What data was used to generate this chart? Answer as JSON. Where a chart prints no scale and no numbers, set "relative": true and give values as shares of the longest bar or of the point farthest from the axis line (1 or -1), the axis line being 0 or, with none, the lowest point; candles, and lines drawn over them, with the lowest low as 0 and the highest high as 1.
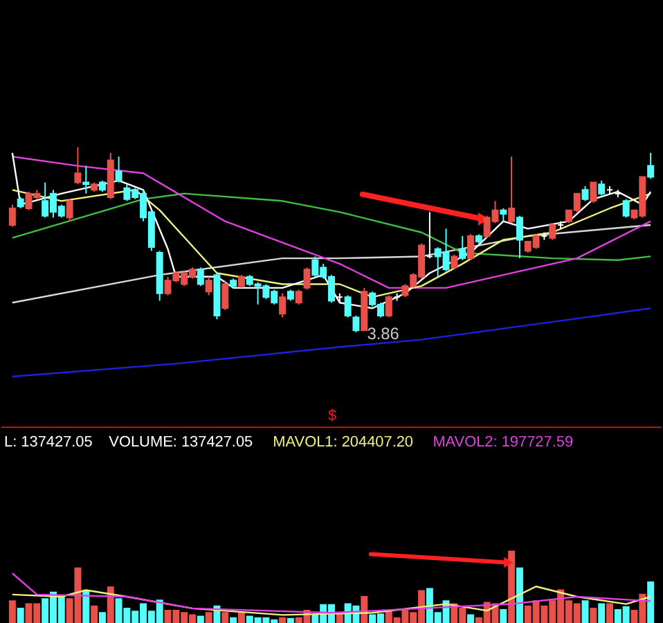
{
  "chart_data": [
    {
      "type": "candlestick",
      "relative": true,
      "categories": [
        null,
        null,
        null,
        null,
        null,
        null,
        null,
        null,
        null,
        null,
        null,
        null,
        null,
        null,
        null,
        null,
        null,
        null,
        null,
        null,
        null,
        null,
        null,
        null,
        null,
        null,
        null,
        null,
        null,
        null,
        null,
        null,
        null,
        null,
        null,
        null,
        null,
        null,
        null,
        null,
        null,
        null,
        null,
        null,
        null,
        null,
        null,
        null,
        null,
        null,
        null,
        null,
        null,
        null,
        null,
        null,
        null,
        null,
        null,
        null,
        null,
        null,
        null,
        null,
        null,
        null,
        null,
        null,
        null,
        null,
        null,
        null,
        null,
        null,
        null,
        null,
        null,
        null,
        null
      ],
      "ohlc": [
        [
          0.58,
          0.69,
          0.57,
          0.67
        ],
        [
          0.72,
          0.73,
          0.67,
          0.68
        ],
        [
          0.67,
          0.76,
          0.66,
          0.75
        ],
        [
          0.73,
          0.77,
          0.72,
          0.75
        ],
        [
          0.71,
          0.81,
          0.62,
          0.63
        ],
        [
          0.75,
          0.77,
          0.62,
          0.65
        ],
        [
          0.68,
          0.69,
          0.62,
          0.63
        ],
        [
          0.62,
          0.72,
          0.6,
          0.71
        ],
        [
          0.81,
          1.0,
          0.8,
          0.86
        ],
        [
          0.81,
          0.9,
          0.75,
          0.8
        ],
        [
          0.77,
          0.81,
          0.76,
          0.8
        ],
        [
          0.81,
          0.82,
          0.76,
          0.77
        ],
        [
          0.73,
          0.97,
          0.72,
          0.93
        ],
        [
          0.87,
          0.95,
          0.81,
          0.82
        ],
        [
          0.78,
          0.8,
          0.71,
          0.72
        ],
        [
          0.77,
          0.78,
          0.72,
          0.73
        ],
        [
          0.75,
          0.77,
          0.6,
          0.62
        ],
        [
          0.65,
          0.66,
          0.44,
          0.46
        ],
        [
          0.43,
          0.44,
          0.17,
          0.21
        ],
        [
          0.21,
          0.3,
          0.2,
          0.28
        ],
        [
          0.28,
          0.33,
          0.27,
          0.32
        ],
        [
          0.26,
          0.33,
          0.25,
          0.32
        ],
        [
          0.3,
          0.35,
          0.29,
          0.34
        ],
        [
          0.34,
          0.35,
          0.25,
          0.26
        ],
        [
          0.22,
          0.3,
          0.2,
          0.28
        ],
        [
          0.31,
          0.32,
          0.07,
          0.09
        ],
        [
          0.13,
          0.28,
          0.12,
          0.26
        ],
        [
          0.28,
          0.29,
          0.24,
          0.25
        ],
        [
          0.25,
          0.31,
          0.24,
          0.3
        ],
        [
          0.3,
          0.31,
          0.25,
          0.26
        ],
        [
          0.26,
          0.27,
          0.15,
          0.25
        ],
        [
          0.25,
          0.26,
          0.18,
          0.19
        ],
        [
          0.22,
          0.23,
          0.15,
          0.16
        ],
        [
          0.1,
          0.21,
          0.08,
          0.19
        ],
        [
          0.22,
          0.23,
          0.17,
          0.18
        ],
        [
          0.16,
          0.23,
          0.15,
          0.22
        ],
        [
          0.24,
          0.35,
          0.23,
          0.34
        ],
        [
          0.39,
          0.41,
          0.3,
          0.31
        ],
        [
          0.35,
          0.37,
          0.29,
          0.3
        ],
        [
          0.3,
          0.31,
          0.16,
          0.17
        ],
        [
          0.19,
          0.21,
          0.16,
          0.19
        ],
        [
          0.19,
          0.2,
          0.08,
          0.09
        ],
        [
          0.08,
          0.09,
          0.0,
          0.01
        ],
        [
          0.01,
          0.24,
          0.01,
          0.22
        ],
        [
          0.21,
          0.22,
          0.14,
          0.15
        ],
        [
          0.15,
          0.16,
          0.08,
          0.09
        ],
        [
          0.09,
          0.2,
          0.08,
          0.19
        ],
        [
          0.19,
          0.21,
          0.17,
          0.19
        ],
        [
          0.2,
          0.26,
          0.19,
          0.25
        ],
        [
          0.25,
          0.32,
          0.24,
          0.31
        ],
        [
          0.3,
          0.48,
          0.29,
          0.47
        ],
        [
          0.41,
          0.65,
          0.4,
          0.41
        ],
        [
          0.45,
          0.46,
          0.3,
          0.41
        ],
        [
          0.43,
          0.56,
          0.33,
          0.34
        ],
        [
          0.35,
          0.42,
          0.34,
          0.41
        ],
        [
          0.45,
          0.52,
          0.39,
          0.4
        ],
        [
          0.4,
          0.53,
          0.39,
          0.52
        ],
        [
          0.52,
          0.53,
          0.48,
          0.49
        ],
        [
          0.52,
          0.63,
          0.51,
          0.62
        ],
        [
          0.6,
          0.71,
          0.59,
          0.66
        ],
        [
          0.66,
          0.67,
          0.6,
          0.64
        ],
        [
          0.6,
          0.95,
          0.59,
          0.67
        ],
        [
          0.62,
          0.63,
          0.4,
          0.5
        ],
        [
          0.44,
          0.49,
          0.43,
          0.49
        ],
        [
          0.46,
          0.53,
          0.45,
          0.52
        ],
        [
          0.52,
          0.54,
          0.5,
          0.52
        ],
        [
          0.51,
          0.59,
          0.5,
          0.58
        ],
        [
          0.58,
          0.6,
          0.56,
          0.58
        ],
        [
          0.6,
          0.66,
          0.59,
          0.66
        ],
        [
          0.66,
          0.75,
          0.65,
          0.75
        ],
        [
          0.77,
          0.79,
          0.71,
          0.72
        ],
        [
          0.71,
          0.81,
          0.7,
          0.81
        ],
        [
          0.8,
          0.82,
          0.74,
          0.75
        ],
        [
          0.77,
          0.79,
          0.75,
          0.77
        ],
        [
          0.75,
          0.77,
          0.73,
          0.75
        ],
        [
          0.71,
          0.72,
          0.62,
          0.63
        ],
        [
          0.62,
          0.66,
          0.61,
          0.66
        ],
        [
          0.63,
          0.84,
          0.62,
          0.84
        ],
        [
          0.9,
          0.97,
          0.83,
          0.84
        ]
      ],
      "colors": [
        "#e8504a",
        "#54fcfc",
        "#e8504a",
        "#e8504a",
        "#54fcfc",
        "#54fcfc",
        "#54fcfc",
        "#e8504a",
        "#e8504a",
        "#54fcfc",
        "#e8504a",
        "#54fcfc",
        "#e8504a",
        "#54fcfc",
        "#54fcfc",
        "#54fcfc",
        "#54fcfc",
        "#54fcfc",
        "#54fcfc",
        "#e8504a",
        "#e8504a",
        "#e8504a",
        "#e8504a",
        "#54fcfc",
        "#e8504a",
        "#54fcfc",
        "#e8504a",
        "#54fcfc",
        "#e8504a",
        "#54fcfc",
        "#54fcfc",
        "#54fcfc",
        "#54fcfc",
        "#e8504a",
        "#54fcfc",
        "#e8504a",
        "#e8504a",
        "#54fcfc",
        "#54fcfc",
        "#54fcfc",
        "#ffffff",
        "#54fcfc",
        "#54fcfc",
        "#e8504a",
        "#54fcfc",
        "#54fcfc",
        "#e8504a",
        "#ffffff",
        "#e8504a",
        "#e8504a",
        "#e8504a",
        "#ffffff",
        "#54fcfc",
        "#54fcfc",
        "#e8504a",
        "#54fcfc",
        "#e8504a",
        "#54fcfc",
        "#e8504a",
        "#e8504a",
        "#54fcfc",
        "#e8504a",
        "#54fcfc",
        "#e8504a",
        "#e8504a",
        "#ffffff",
        "#e8504a",
        "#ffffff",
        "#e8504a",
        "#e8504a",
        "#54fcfc",
        "#e8504a",
        "#54fcfc",
        "#ffffff",
        "#ffffff",
        "#54fcfc",
        "#e8504a",
        "#e8504a",
        "#54fcfc"
      ],
      "series": [
        {
          "type": "line",
          "color": "#2020e0",
          "values": [
            -0.24,
            null,
            null,
            null,
            null,
            null,
            null,
            null,
            null,
            null,
            null,
            null,
            null,
            null,
            null,
            null,
            null,
            null,
            null,
            null,
            -0.17,
            null,
            null,
            null,
            null,
            null,
            null,
            null,
            null,
            null,
            null,
            null,
            null,
            null,
            null,
            null,
            null,
            null,
            null,
            null,
            -0.08,
            null,
            null,
            null,
            null,
            null,
            null,
            null,
            null,
            null,
            -0.04,
            null,
            null,
            null,
            null,
            null,
            null,
            null,
            null,
            null,
            0.02,
            null,
            null,
            null,
            null,
            null,
            null,
            null,
            null,
            null,
            0.08,
            null,
            null,
            null,
            null,
            null,
            null,
            null,
            0.13
          ]
        },
        {
          "type": "line",
          "color": "#d8d8d8",
          "values": [
            0.16,
            null,
            null,
            null,
            null,
            null,
            null,
            null,
            null,
            null,
            null,
            null,
            null,
            null,
            null,
            null,
            null,
            null,
            0.31,
            null,
            null,
            null,
            null,
            null,
            null,
            null,
            null,
            null,
            null,
            null,
            null,
            null,
            null,
            0.4,
            null,
            null,
            null,
            null,
            null,
            null,
            0.4,
            null,
            null,
            null,
            null,
            null,
            null,
            null,
            null,
            null,
            0.41,
            null,
            null,
            null,
            null,
            null,
            null,
            null,
            null,
            null,
            null,
            null,
            null,
            0.52,
            null,
            null,
            null,
            null,
            null,
            null,
            null,
            null,
            null,
            null,
            null,
            null,
            null,
            null,
            0.58
          ]
        },
        {
          "type": "line",
          "color": "#40c040",
          "values": [
            0.51,
            null,
            null,
            null,
            null,
            null,
            null,
            null,
            null,
            null,
            null,
            null,
            null,
            null,
            null,
            null,
            0.72,
            null,
            null,
            null,
            null,
            0.75,
            null,
            null,
            null,
            null,
            null,
            null,
            null,
            null,
            null,
            null,
            null,
            0.71,
            null,
            null,
            null,
            null,
            null,
            null,
            0.65,
            null,
            null,
            null,
            null,
            null,
            null,
            null,
            null,
            null,
            0.54,
            null,
            null,
            null,
            null,
            0.43,
            null,
            null,
            null,
            null,
            null,
            null,
            null,
            null,
            null,
            null,
            0.4,
            null,
            null,
            null,
            null,
            null,
            null,
            null,
            0.39,
            null,
            null,
            null,
            0.41
          ]
        },
        {
          "type": "line",
          "color": "#e040e0",
          "values": [
            0.95,
            null,
            null,
            null,
            null,
            null,
            null,
            null,
            0.9,
            null,
            null,
            null,
            null,
            null,
            null,
            null,
            0.86,
            null,
            null,
            null,
            null,
            null,
            null,
            null,
            null,
            null,
            0.6,
            null,
            null,
            null,
            null,
            null,
            null,
            null,
            null,
            null,
            null,
            null,
            null,
            null,
            0.37,
            null,
            null,
            null,
            null,
            null,
            0.24,
            null,
            null,
            null,
            null,
            null,
            null,
            0.24,
            null,
            null,
            null,
            null,
            null,
            null,
            null,
            null,
            null,
            0.34,
            null,
            null,
            null,
            null,
            null,
            0.4,
            null,
            null,
            null,
            null,
            null,
            null,
            null,
            null,
            0.6
          ]
        },
        {
          "type": "line",
          "color": "#f0f080",
          "values": [
            0.77,
            null,
            null,
            null,
            null,
            null,
            0.71,
            null,
            null,
            null,
            null,
            null,
            null,
            null,
            null,
            0.77,
            null,
            null,
            0.66,
            null,
            null,
            null,
            null,
            null,
            null,
            0.32,
            null,
            null,
            null,
            null,
            null,
            null,
            null,
            0.26,
            null,
            null,
            null,
            null,
            null,
            null,
            0.26,
            null,
            null,
            null,
            0.19,
            null,
            null,
            null,
            null,
            null,
            0.25,
            null,
            null,
            null,
            null,
            0.37,
            null,
            null,
            null,
            null,
            0.5,
            null,
            null,
            null,
            null,
            null,
            0.54,
            null,
            null,
            null,
            null,
            null,
            null,
            0.67,
            null,
            null,
            null,
            null,
            0.75
          ]
        },
        {
          "type": "line",
          "color": "#ffffff",
          "values": [
            0.97,
            0.69,
            null,
            null,
            null,
            null,
            0.75,
            null,
            null,
            null,
            null,
            null,
            null,
            0.82,
            null,
            null,
            0.77,
            null,
            null,
            0.45,
            0.3,
            null,
            null,
            null,
            null,
            0.3,
            null,
            0.24,
            null,
            null,
            null,
            null,
            null,
            0.24,
            null,
            null,
            null,
            null,
            0.31,
            null,
            0.16,
            null,
            null,
            null,
            0.13,
            null,
            null,
            null,
            0.21,
            null,
            null,
            0.32,
            null,
            null,
            null,
            null,
            0.43,
            null,
            null,
            null,
            0.6,
            null,
            null,
            0.56,
            null,
            null,
            null,
            null,
            0.6,
            null,
            null,
            0.72,
            null,
            null,
            0.76,
            null,
            null,
            0.69,
            0.76
          ]
        }
      ],
      "annotations": [
        "3.86"
      ]
    },
    {
      "type": "bar",
      "relative": true,
      "categories": [
        null,
        null,
        null,
        null,
        null,
        null,
        null,
        null,
        null,
        null,
        null,
        null,
        null,
        null,
        null,
        null,
        null,
        null,
        null,
        null,
        null,
        null,
        null,
        null,
        null,
        null,
        null,
        null,
        null,
        null,
        null,
        null,
        null,
        null,
        null,
        null,
        null,
        null,
        null,
        null,
        null,
        null,
        null,
        null,
        null,
        null,
        null,
        null,
        null,
        null,
        null,
        null,
        null,
        null,
        null,
        null,
        null,
        null,
        null,
        null,
        null,
        null,
        null,
        null,
        null,
        null,
        null,
        null,
        null,
        null,
        null,
        null,
        null,
        null,
        null,
        null,
        null,
        null,
        null
      ],
      "series": [
        {
          "type": "bar",
          "values": [
            0.32,
            0.22,
            0.28,
            0.28,
            0.35,
            0.44,
            0.39,
            0.35,
            0.77,
            0.46,
            0.25,
            0.16,
            0.51,
            0.35,
            0.22,
            0.18,
            0.28,
            0.18,
            0.33,
            0.19,
            0.19,
            0.16,
            0.13,
            0.11,
            0.16,
            0.25,
            0.16,
            0.09,
            0.16,
            0.11,
            0.09,
            0.09,
            0.06,
            0.09,
            0.08,
            0.09,
            0.19,
            0.13,
            0.27,
            0.27,
            0.16,
            0.28,
            0.25,
            0.38,
            0.13,
            0.14,
            0.19,
            0.09,
            0.2,
            0.16,
            0.46,
            0.49,
            0.16,
            0.32,
            0.28,
            0.22,
            0.13,
            0.09,
            0.3,
            0.28,
            0.2,
            1.0,
            0.77,
            0.25,
            0.32,
            0.25,
            0.32,
            0.47,
            0.32,
            0.28,
            0.32,
            0.22,
            0.28,
            0.28,
            0.2,
            0.24,
            0.19,
            0.41,
            0.58
          ],
          "colors": [
            "#e8504a",
            "#54fcfc",
            "#e8504a",
            "#e8504a",
            "#54fcfc",
            "#54fcfc",
            "#54fcfc",
            "#e8504a",
            "#e8504a",
            "#54fcfc",
            "#e8504a",
            "#54fcfc",
            "#e8504a",
            "#54fcfc",
            "#54fcfc",
            "#54fcfc",
            "#54fcfc",
            "#54fcfc",
            "#54fcfc",
            "#e8504a",
            "#e8504a",
            "#e8504a",
            "#e8504a",
            "#54fcfc",
            "#e8504a",
            "#54fcfc",
            "#e8504a",
            "#54fcfc",
            "#e8504a",
            "#54fcfc",
            "#54fcfc",
            "#54fcfc",
            "#54fcfc",
            "#e8504a",
            "#54fcfc",
            "#e8504a",
            "#e8504a",
            "#54fcfc",
            "#54fcfc",
            "#54fcfc",
            "#e8504a",
            "#54fcfc",
            "#54fcfc",
            "#e8504a",
            "#54fcfc",
            "#54fcfc",
            "#e8504a",
            "#e8504a",
            "#e8504a",
            "#e8504a",
            "#e8504a",
            "#54fcfc",
            "#54fcfc",
            "#54fcfc",
            "#e8504a",
            "#e8504a",
            "#54fcfc",
            "#e8504a",
            "#e8504a",
            "#e8504a",
            "#54fcfc",
            "#e8504a",
            "#54fcfc",
            "#e8504a",
            "#e8504a",
            "#e8504a",
            "#e8504a",
            "#e8504a",
            "#e8504a",
            "#e8504a",
            "#54fcfc",
            "#e8504a",
            "#54fcfc",
            "#e8504a",
            "#54fcfc",
            "#54fcfc",
            "#e8504a",
            "#e8504a",
            "#54fcfc"
          ]
        },
        {
          "type": "line",
          "color": "#f0f080",
          "values": [
            0.41,
            null,
            null,
            null,
            null,
            null,
            0.38,
            null,
            null,
            0.47,
            null,
            null,
            null,
            null,
            0.38,
            null,
            null,
            null,
            null,
            null,
            null,
            null,
            0.22,
            null,
            null,
            null,
            null,
            null,
            null,
            null,
            null,
            null,
            null,
            0.13,
            null,
            null,
            null,
            null,
            null,
            null,
            null,
            null,
            null,
            null,
            0.16,
            null,
            null,
            null,
            null,
            null,
            null,
            null,
            null,
            0.28,
            null,
            null,
            null,
            null,
            0.19,
            null,
            null,
            null,
            null,
            null,
            0.52,
            null,
            null,
            null,
            null,
            0.38,
            null,
            null,
            null,
            null,
            null,
            0.28,
            null,
            null,
            0.38
          ]
        },
        {
          "type": "line",
          "color": "#e040e0",
          "values": [
            0.7,
            null,
            null,
            0.41,
            null,
            null,
            null,
            null,
            null,
            null,
            null,
            null,
            null,
            null,
            0.38,
            null,
            null,
            null,
            null,
            null,
            null,
            null,
            0.22,
            null,
            null,
            null,
            null,
            null,
            null,
            null,
            null,
            null,
            null,
            null,
            null,
            null,
            null,
            null,
            null,
            0.16,
            null,
            null,
            null,
            null,
            null,
            null,
            null,
            null,
            null,
            null,
            0.22,
            null,
            null,
            null,
            null,
            null,
            null,
            null,
            null,
            null,
            null,
            0.28,
            null,
            null,
            null,
            null,
            null,
            null,
            null,
            0.38,
            null,
            null,
            null,
            null,
            null,
            null,
            null,
            null,
            0.32
          ]
        }
      ],
      "annotations": [
        "$",
        "L: 137427.05",
        "VOLUME: 137427.05",
        "MAVOL1: 204407.20",
        "MAVOL2: 197727.59"
      ]
    }
  ]
}
